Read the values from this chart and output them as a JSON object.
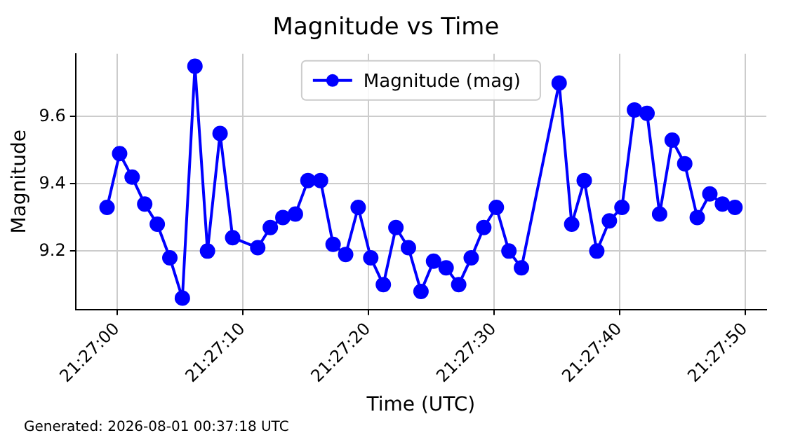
{
  "chart_data": {
    "type": "line",
    "title": "Magnitude vs Time",
    "xlabel": "Time (UTC)",
    "ylabel": "Magnitude",
    "x": [
      21.449778,
      21.450056,
      21.450333,
      21.450611,
      21.450889,
      21.451167,
      21.451444,
      21.451722,
      21.452,
      21.452278,
      21.452556,
      21.453111,
      21.453389,
      21.453667,
      21.453944,
      21.454222,
      21.4545,
      21.454778,
      21.455056,
      21.455333,
      21.455611,
      21.455889,
      21.456167,
      21.456444,
      21.456722,
      21.457,
      21.457278,
      21.457556,
      21.457833,
      21.458111,
      21.458389,
      21.458667,
      21.458944,
      21.459778,
      21.460056,
      21.460333,
      21.460611,
      21.460889,
      21.461167,
      21.461444,
      21.461722,
      21.462,
      21.462278,
      21.462556,
      21.462833,
      21.463111,
      21.463389,
      21.463667
    ],
    "series": [
      {
        "name": "Magnitude (mag)",
        "color": "#0000ff",
        "values": [
          9.33,
          9.49,
          9.42,
          9.34,
          9.28,
          9.18,
          9.06,
          9.75,
          9.2,
          9.55,
          9.24,
          9.21,
          9.27,
          9.3,
          9.31,
          9.41,
          9.41,
          9.22,
          9.19,
          9.33,
          9.18,
          9.1,
          9.27,
          9.21,
          9.08,
          9.17,
          9.15,
          9.1,
          9.18,
          9.27,
          9.33,
          9.2,
          9.15,
          9.7,
          9.28,
          9.41,
          9.2,
          9.29,
          9.33,
          9.62,
          9.61,
          9.31,
          9.53,
          9.46,
          9.3,
          9.37,
          9.34,
          9.33
        ]
      }
    ],
    "xlim": [
      21.449083,
      21.464361
    ],
    "xticks": [
      {
        "value": 21.45,
        "label": "21:27:00"
      },
      {
        "value": 21.452778,
        "label": "21:27:10"
      },
      {
        "value": 21.455556,
        "label": "21:27:20"
      },
      {
        "value": 21.458333,
        "label": "21:27:30"
      },
      {
        "value": 21.461111,
        "label": "21:27:40"
      },
      {
        "value": 21.463889,
        "label": "21:27:50"
      }
    ],
    "ylim": [
      9.026,
      9.787
    ],
    "yticks": [
      9.2,
      9.4,
      9.6
    ],
    "grid": true,
    "legend": "top",
    "marker": "circle",
    "line_style": "solid",
    "annotations": [
      "Generated: 2026-08-01 00:37:18 UTC"
    ]
  }
}
